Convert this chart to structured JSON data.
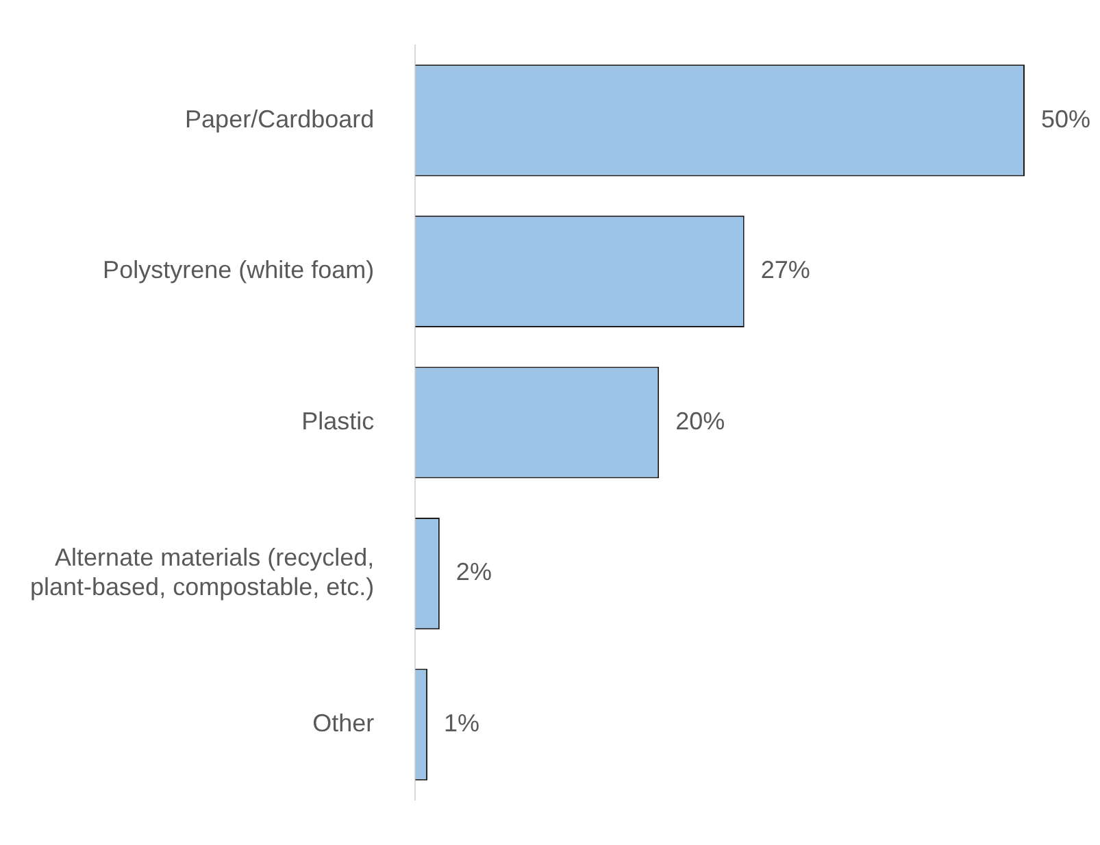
{
  "chart_data": {
    "type": "bar",
    "orientation": "horizontal",
    "categories": [
      "Paper/Cardboard",
      "Polystyrene (white foam)",
      "Plastic",
      "Alternate materials (recycled, plant-based, compostable, etc.)",
      "Other"
    ],
    "values": [
      50,
      27,
      20,
      2,
      1
    ],
    "value_labels": [
      "50%",
      "27%",
      "20%",
      "2%",
      "1%"
    ],
    "color": "#9dc3e6"
  }
}
